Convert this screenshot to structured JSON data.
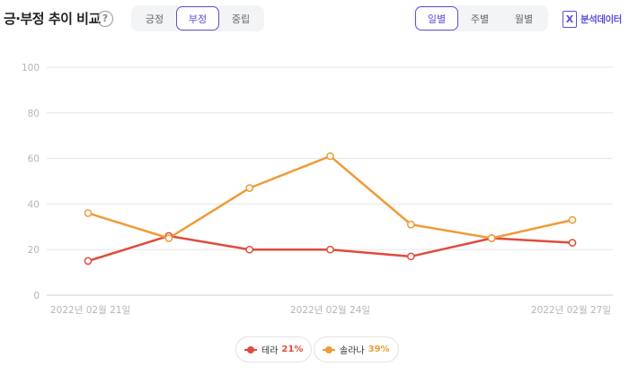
{
  "header": {
    "title": "긍·부정 추이 비교",
    "help_icon": "?",
    "sentiment_tabs": [
      {
        "label": "긍정",
        "active": false
      },
      {
        "label": "부정",
        "active": true
      },
      {
        "label": "중립",
        "active": false
      }
    ],
    "period_tabs": [
      {
        "label": "일별",
        "active": true
      },
      {
        "label": "주별",
        "active": false
      },
      {
        "label": "월별",
        "active": false
      }
    ],
    "export_label": "분석데이터",
    "export_icon": "excel-icon",
    "accent_color": "#5b4fd8"
  },
  "legend": [
    {
      "name": "테라",
      "percent": "21%",
      "color": "#e04a3c"
    },
    {
      "name": "솔라나",
      "percent": "39%",
      "color": "#ef9b38"
    }
  ],
  "chart_data": {
    "type": "line",
    "x": [
      "2022년 02월 21일",
      "2022년 02월 22일",
      "2022년 02월 23일",
      "2022년 02월 24일",
      "2022년 02월 25일",
      "2022년 02월 26일",
      "2022년 02월 27일"
    ],
    "x_tick_labels": [
      "2022년 02월 21일",
      "2022년 02월 24일",
      "2022년 02월 27일"
    ],
    "y_ticks": [
      "0",
      "20",
      "40",
      "60",
      "80",
      "100"
    ],
    "ylim": [
      0,
      100
    ],
    "grid": true,
    "legend_position": "bottom-center",
    "series": [
      {
        "name": "테라",
        "color": "#e04a3c",
        "values": [
          15,
          26,
          20,
          20,
          17,
          25,
          23
        ]
      },
      {
        "name": "솔라나",
        "color": "#ef9b38",
        "values": [
          36,
          25,
          47,
          61,
          31,
          25,
          33
        ]
      }
    ]
  }
}
